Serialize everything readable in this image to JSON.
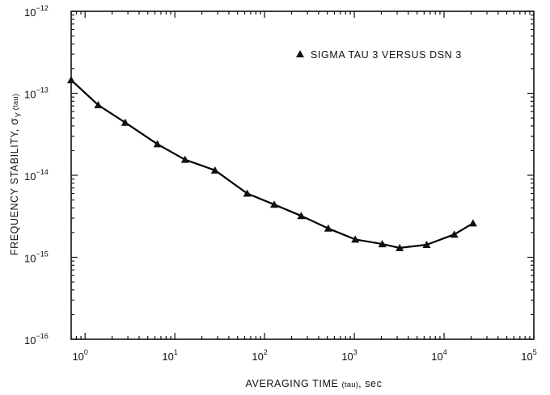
{
  "chart_data": {
    "type": "line",
    "title": "",
    "xlabel": {
      "prefix": "AVERAGING TIME ",
      "tau": "(tau)",
      "suffix": ", sec"
    },
    "ylabel": {
      "prefix": "FREQUENCY STABILITY, ",
      "sigma": "σ",
      "subscript": "Y",
      "tau": "(tau)"
    },
    "x_scale": "log",
    "y_scale": "log",
    "xlim": [
      0.7,
      100000
    ],
    "ylim": [
      1e-16,
      1e-12
    ],
    "x_ticks": [
      {
        "value": 1,
        "base": "10",
        "exp": "0"
      },
      {
        "value": 10,
        "base": "10",
        "exp": "1"
      },
      {
        "value": 100,
        "base": "10",
        "exp": "2"
      },
      {
        "value": 1000,
        "base": "10",
        "exp": "3"
      },
      {
        "value": 10000,
        "base": "10",
        "exp": "4"
      },
      {
        "value": 100000,
        "base": "10",
        "exp": "5"
      }
    ],
    "y_ticks": [
      {
        "value": 1e-12,
        "base": "10",
        "exp": "−12"
      },
      {
        "value": 1e-13,
        "base": "10",
        "exp": "−13"
      },
      {
        "value": 1e-14,
        "base": "10",
        "exp": "−14"
      },
      {
        "value": 1e-15,
        "base": "10",
        "exp": "−15"
      },
      {
        "value": 1e-16,
        "base": "10",
        "exp": "−16"
      }
    ],
    "grid": false,
    "legend_position": "top-right",
    "series": [
      {
        "name": "SIGMA TAU 3 VERSUS DSN 3",
        "marker": "triangle",
        "color": "#000000",
        "x": [
          0.7,
          1.4,
          2.8,
          6.4,
          13,
          28,
          64,
          128,
          256,
          512,
          1024,
          2048,
          3200,
          6400,
          13000,
          21000
        ],
        "y": [
          1.45e-13,
          7.2e-14,
          4.4e-14,
          2.4e-14,
          1.55e-14,
          1.15e-14,
          6e-15,
          4.4e-15,
          3.2e-15,
          2.25e-15,
          1.65e-15,
          1.45e-15,
          1.3e-15,
          1.42e-15,
          1.9e-15,
          2.6e-15
        ]
      }
    ]
  }
}
